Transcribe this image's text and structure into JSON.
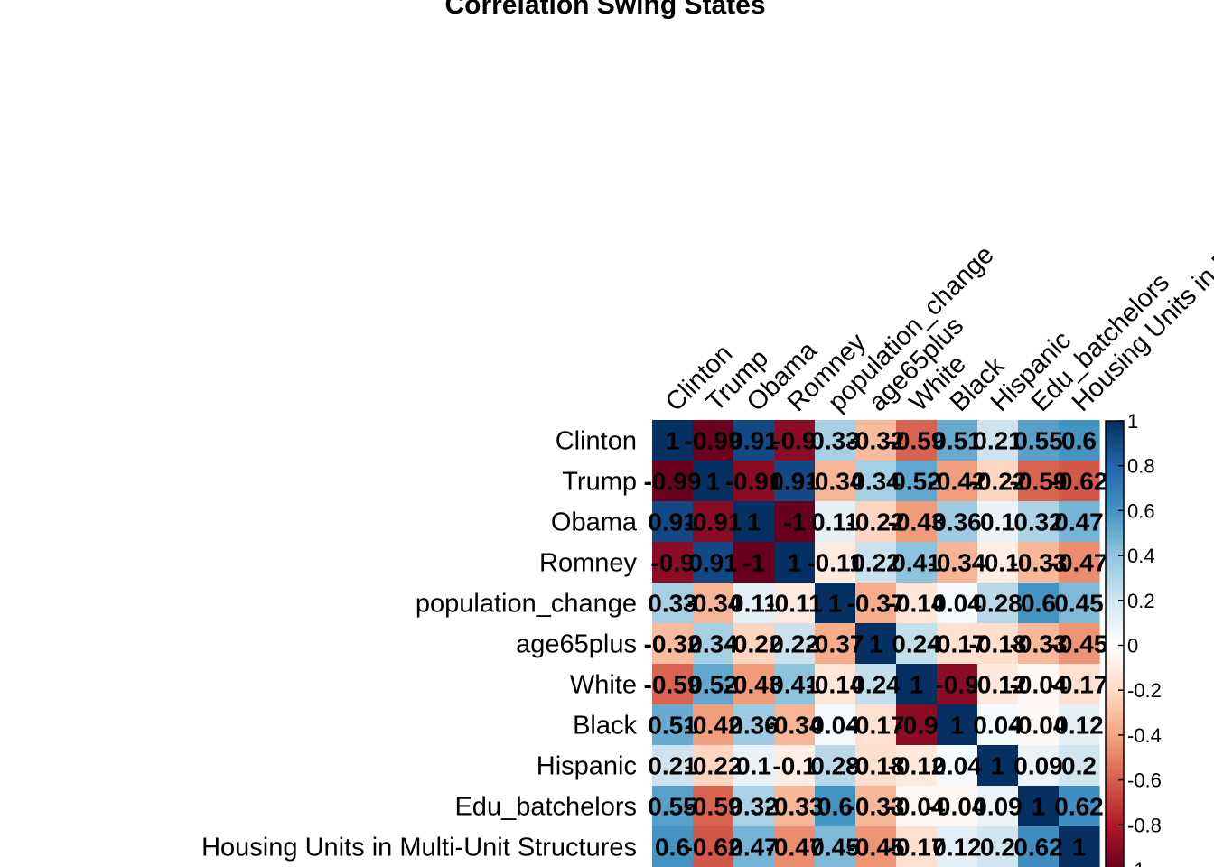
{
  "chart_data": {
    "type": "heatmap",
    "title": "Correlation Swing States",
    "variables": [
      "Clinton",
      "Trump",
      "Obama",
      "Romney",
      "population_change",
      "age65plus",
      "White",
      "Black",
      "Hispanic",
      "Edu_batchelors",
      "Housing Units in Multi-Unit Structures"
    ],
    "column_labels": [
      "Clinton",
      "Trump",
      "Obama",
      "Romney",
      "population_change",
      "age65plus",
      "White",
      "Black",
      "Hispanic",
      "Edu_batchelors",
      "Housing Units in Multi-Unit Structures"
    ],
    "cell_labels": [
      [
        "1",
        "-0.99",
        "0.91",
        "-0.9",
        "0.33",
        "-0.32",
        "-0.59",
        "0.51",
        "0.21",
        "0.55",
        "0.6"
      ],
      [
        "-0.99",
        "1",
        "-0.91",
        "0.91",
        "-0.34",
        "0.34",
        "0.52",
        "-0.42",
        "-0.22",
        "-0.59",
        "-0.62"
      ],
      [
        "0.91",
        "-0.91",
        "1",
        "-1",
        "0.11",
        "-0.22",
        "-0.43",
        "0.36",
        "0.1",
        "0.32",
        "0.47"
      ],
      [
        "-0.9",
        "0.91",
        "-1",
        "1",
        "-0.11",
        "0.22",
        "0.41",
        "-0.34",
        "-0.1",
        "-0.33",
        "-0.47"
      ],
      [
        "0.33",
        "-0.34",
        "0.11",
        "-0.11",
        "1",
        "-0.37",
        "-0.14",
        "0.04",
        "0.28",
        "0.6",
        "0.45"
      ],
      [
        "-0.32",
        "0.34",
        "-0.22",
        "0.22",
        "-0.37",
        "1",
        "0.24",
        "-0.17",
        "-0.18",
        "-0.33",
        "-0.45"
      ],
      [
        "-0.59",
        "0.52",
        "-0.43",
        "0.41",
        "-0.14",
        "0.24",
        "1",
        "-0.9",
        "-0.12",
        "-0.04",
        "-0.17"
      ],
      [
        "0.51",
        "-0.42",
        "0.36",
        "-0.34",
        "0.04",
        "-0.17",
        "-0.9",
        "1",
        "0.04",
        "-0.04",
        "0.12"
      ],
      [
        "0.21",
        "-0.22",
        "0.1",
        "-0.1",
        "0.28",
        "-0.18",
        "-0.12",
        "0.04",
        "1",
        "0.09",
        "0.2"
      ],
      [
        "0.55",
        "-0.59",
        "0.32",
        "-0.33",
        "0.6",
        "-0.33",
        "-0.04",
        "-0.04",
        "0.09",
        "1",
        "0.62"
      ],
      [
        "0.6",
        "-0.62",
        "0.47",
        "-0.47",
        "0.45",
        "-0.45",
        "-0.17",
        "0.12",
        "0.2",
        "0.62",
        "1"
      ]
    ],
    "value_range": [
      -1,
      1
    ],
    "colorbar_ticks": [
      "-1",
      "-0.8",
      "-0.6",
      "-0.4",
      "-0.2",
      "0",
      "0.2",
      "0.4",
      "0.6",
      "0.8",
      "1"
    ],
    "colorbar_position": "right",
    "color_scale": [
      "#67001F",
      "#B2182B",
      "#D6604D",
      "#F4A582",
      "#FDDBC7",
      "#FFFFFF",
      "#D1E5F0",
      "#92C5DE",
      "#4393C3",
      "#2166AC",
      "#053061"
    ],
    "grid": false
  }
}
